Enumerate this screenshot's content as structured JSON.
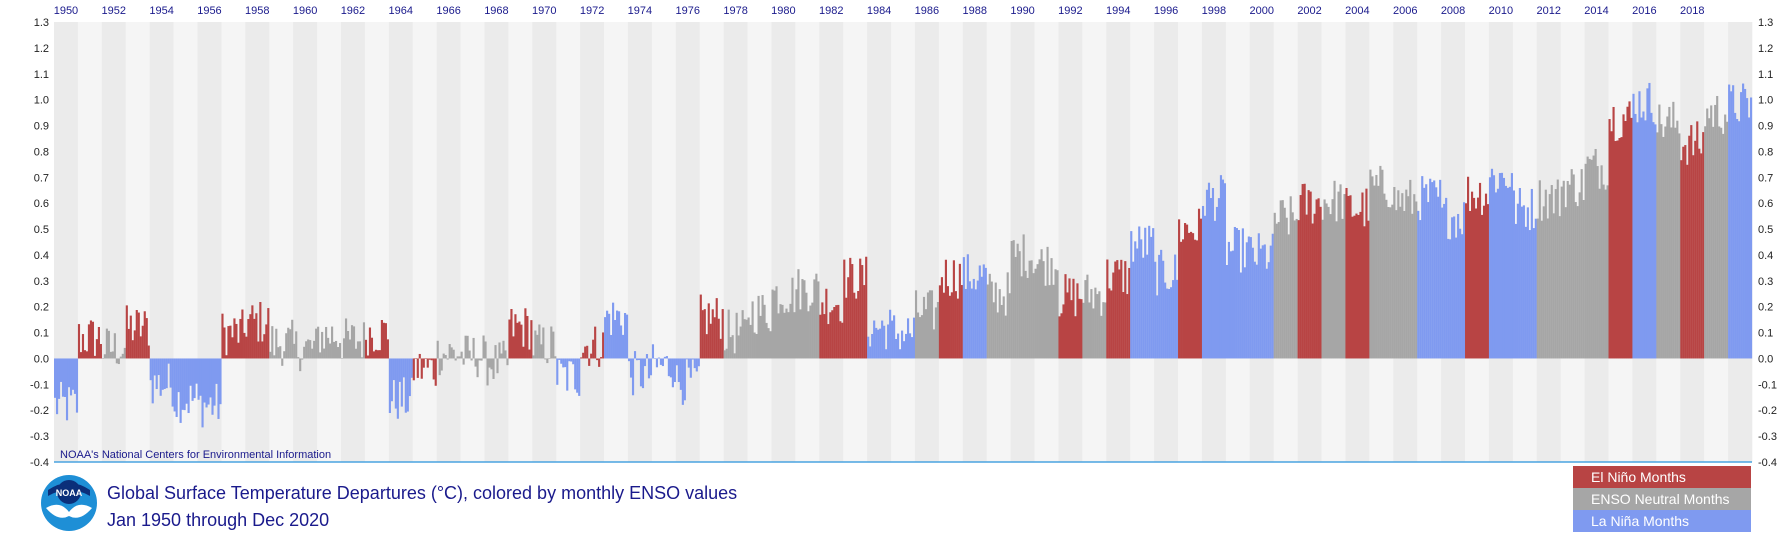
{
  "chart_data": {
    "type": "bar",
    "title": "Global Surface Temperature Departures (°C), colored by monthly ENSO values",
    "subtitle": "Jan 1950 through Dec 2020",
    "source": "NOAA's National Centers for Environmental Information",
    "x_start": 1950,
    "x_end": 2021,
    "x_ticks": [
      "1950",
      "1952",
      "1954",
      "1956",
      "1958",
      "1960",
      "1962",
      "1964",
      "1966",
      "1968",
      "1970",
      "1972",
      "1974",
      "1976",
      "1978",
      "1980",
      "1982",
      "1984",
      "1986",
      "1988",
      "1990",
      "1992",
      "1994",
      "1996",
      "1998",
      "2000",
      "2002",
      "2004",
      "2006",
      "2008",
      "2010",
      "2012",
      "2014",
      "2016",
      "2018"
    ],
    "y_ticks": [
      "1.3",
      "1.2",
      "1.1",
      "1.0",
      "0.9",
      "0.8",
      "0.7",
      "0.6",
      "0.5",
      "0.4",
      "0.3",
      "0.2",
      "0.1",
      "0.0",
      "-0.1",
      "-0.2",
      "-0.3",
      "-0.4"
    ],
    "ylim": [
      -0.4,
      1.3
    ],
    "colors": {
      "el_nino": "#b84444",
      "neutral": "#a6a6a6",
      "la_nina": "#7f9af0",
      "band_light": "#f5f5f5",
      "band_dark": "#ebebeb",
      "baseline": "#4aa3e0"
    },
    "annual": [
      {
        "year": 1950,
        "v": -0.18,
        "e": "L"
      },
      {
        "year": 1951,
        "v": 0.08,
        "e": "E"
      },
      {
        "year": 1952,
        "v": 0.04,
        "e": "N"
      },
      {
        "year": 1953,
        "v": 0.12,
        "e": "E"
      },
      {
        "year": 1954,
        "v": -0.1,
        "e": "L"
      },
      {
        "year": 1955,
        "v": -0.16,
        "e": "L"
      },
      {
        "year": 1956,
        "v": -0.18,
        "e": "L"
      },
      {
        "year": 1957,
        "v": 0.1,
        "e": "E"
      },
      {
        "year": 1958,
        "v": 0.14,
        "e": "E"
      },
      {
        "year": 1959,
        "v": 0.06,
        "e": "N"
      },
      {
        "year": 1960,
        "v": 0.04,
        "e": "N"
      },
      {
        "year": 1961,
        "v": 0.09,
        "e": "N"
      },
      {
        "year": 1962,
        "v": 0.07,
        "e": "N"
      },
      {
        "year": 1963,
        "v": 0.1,
        "e": "E"
      },
      {
        "year": 1964,
        "v": -0.16,
        "e": "L"
      },
      {
        "year": 1965,
        "v": -0.04,
        "e": "E"
      },
      {
        "year": 1966,
        "v": 0.02,
        "e": "N"
      },
      {
        "year": 1967,
        "v": 0.01,
        "e": "N"
      },
      {
        "year": 1968,
        "v": -0.02,
        "e": "N"
      },
      {
        "year": 1969,
        "v": 0.12,
        "e": "E"
      },
      {
        "year": 1970,
        "v": 0.05,
        "e": "N"
      },
      {
        "year": 1971,
        "v": -0.07,
        "e": "L"
      },
      {
        "year": 1972,
        "v": 0.05,
        "e": "E"
      },
      {
        "year": 1973,
        "v": 0.16,
        "e": "L"
      },
      {
        "year": 1974,
        "v": -0.06,
        "e": "L"
      },
      {
        "year": 1975,
        "v": -0.03,
        "e": "L"
      },
      {
        "year": 1976,
        "v": -0.09,
        "e": "L"
      },
      {
        "year": 1977,
        "v": 0.16,
        "e": "E"
      },
      {
        "year": 1978,
        "v": 0.1,
        "e": "N"
      },
      {
        "year": 1979,
        "v": 0.18,
        "e": "N"
      },
      {
        "year": 1980,
        "v": 0.25,
        "e": "N"
      },
      {
        "year": 1981,
        "v": 0.27,
        "e": "N"
      },
      {
        "year": 1982,
        "v": 0.22,
        "e": "E"
      },
      {
        "year": 1983,
        "v": 0.31,
        "e": "E"
      },
      {
        "year": 1984,
        "v": 0.12,
        "e": "L"
      },
      {
        "year": 1985,
        "v": 0.1,
        "e": "L"
      },
      {
        "year": 1986,
        "v": 0.18,
        "e": "N"
      },
      {
        "year": 1987,
        "v": 0.32,
        "e": "E"
      },
      {
        "year": 1988,
        "v": 0.32,
        "e": "L"
      },
      {
        "year": 1989,
        "v": 0.25,
        "e": "N"
      },
      {
        "year": 1990,
        "v": 0.4,
        "e": "N"
      },
      {
        "year": 1991,
        "v": 0.37,
        "e": "N"
      },
      {
        "year": 1992,
        "v": 0.24,
        "e": "E"
      },
      {
        "year": 1993,
        "v": 0.25,
        "e": "N"
      },
      {
        "year": 1994,
        "v": 0.32,
        "e": "E"
      },
      {
        "year": 1995,
        "v": 0.44,
        "e": "L"
      },
      {
        "year": 1996,
        "v": 0.33,
        "e": "L"
      },
      {
        "year": 1997,
        "v": 0.5,
        "e": "E"
      },
      {
        "year": 1998,
        "v": 0.62,
        "e": "L"
      },
      {
        "year": 1999,
        "v": 0.42,
        "e": "L"
      },
      {
        "year": 2000,
        "v": 0.4,
        "e": "L"
      },
      {
        "year": 2001,
        "v": 0.54,
        "e": "N"
      },
      {
        "year": 2002,
        "v": 0.6,
        "e": "E"
      },
      {
        "year": 2003,
        "v": 0.61,
        "e": "N"
      },
      {
        "year": 2004,
        "v": 0.58,
        "e": "E"
      },
      {
        "year": 2005,
        "v": 0.66,
        "e": "N"
      },
      {
        "year": 2006,
        "v": 0.61,
        "e": "N"
      },
      {
        "year": 2007,
        "v": 0.62,
        "e": "L"
      },
      {
        "year": 2008,
        "v": 0.55,
        "e": "L"
      },
      {
        "year": 2009,
        "v": 0.64,
        "e": "E"
      },
      {
        "year": 2010,
        "v": 0.7,
        "e": "L"
      },
      {
        "year": 2011,
        "v": 0.58,
        "e": "L"
      },
      {
        "year": 2012,
        "v": 0.62,
        "e": "N"
      },
      {
        "year": 2013,
        "v": 0.67,
        "e": "N"
      },
      {
        "year": 2014,
        "v": 0.74,
        "e": "N"
      },
      {
        "year": 2015,
        "v": 0.93,
        "e": "E"
      },
      {
        "year": 2016,
        "v": 0.99,
        "e": "L"
      },
      {
        "year": 2017,
        "v": 0.91,
        "e": "N"
      },
      {
        "year": 2018,
        "v": 0.83,
        "e": "E"
      },
      {
        "year": 2019,
        "v": 0.95,
        "e": "N"
      },
      {
        "year": 2020,
        "v": 0.98,
        "e": "L"
      }
    ]
  },
  "legend": [
    {
      "label": "El Niño Months",
      "color": "#b84444"
    },
    {
      "label": "ENSO Neutral Months",
      "color": "#a6a6a6"
    },
    {
      "label": "La Niña Months",
      "color": "#7f9af0"
    }
  ],
  "logo": {
    "text": "NOAA"
  }
}
